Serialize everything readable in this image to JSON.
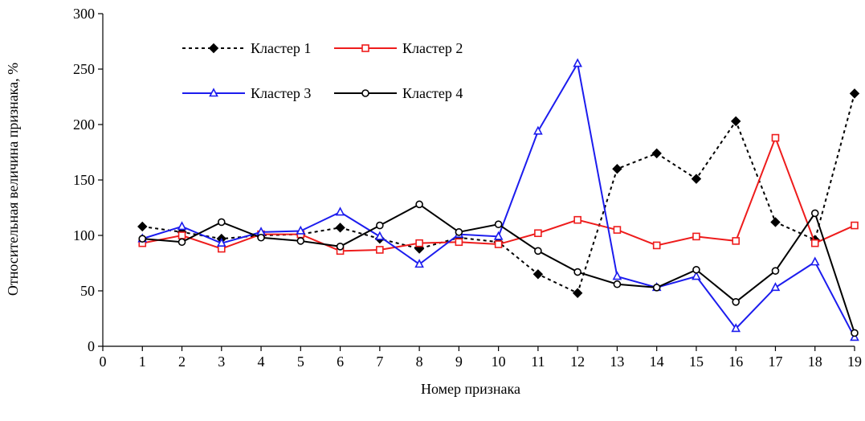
{
  "chart_data": {
    "type": "line",
    "title": "",
    "xlabel": "Номер признака",
    "ylabel": "Относительная величина признака, %",
    "xlim": [
      0,
      19
    ],
    "ylim": [
      0,
      300
    ],
    "x_ticks": [
      0,
      1,
      2,
      3,
      4,
      5,
      6,
      7,
      8,
      9,
      10,
      11,
      12,
      13,
      14,
      15,
      16,
      17,
      18,
      19
    ],
    "y_ticks": [
      0,
      50,
      100,
      150,
      200,
      250,
      300
    ],
    "grid": false,
    "legend_position": "top-left",
    "x": [
      1,
      2,
      3,
      4,
      5,
      6,
      7,
      8,
      9,
      10,
      11,
      12,
      13,
      14,
      15,
      16,
      17,
      18,
      19
    ],
    "series": [
      {
        "name": "Кластер 1",
        "color": "#000000",
        "dash": true,
        "marker": "diamond-filled",
        "values": [
          108,
          103,
          97,
          100,
          101,
          107,
          97,
          88,
          98,
          94,
          65,
          48,
          160,
          174,
          151,
          203,
          112,
          96,
          228
        ]
      },
      {
        "name": "Кластер 2",
        "color": "#ee1c1c",
        "dash": false,
        "marker": "square-open",
        "values": [
          93,
          100,
          88,
          101,
          101,
          86,
          87,
          93,
          94,
          92,
          102,
          114,
          105,
          91,
          99,
          95,
          188,
          93,
          109
        ]
      },
      {
        "name": "Кластер 3",
        "color": "#1c1cee",
        "dash": false,
        "marker": "triangle-open",
        "values": [
          97,
          108,
          93,
          103,
          104,
          121,
          99,
          74,
          101,
          99,
          194,
          255,
          63,
          53,
          63,
          16,
          53,
          76,
          8
        ]
      },
      {
        "name": "Кластер 4",
        "color": "#000000",
        "dash": false,
        "marker": "circle-open",
        "values": [
          97,
          94,
          112,
          98,
          95,
          90,
          109,
          128,
          103,
          110,
          86,
          67,
          56,
          53,
          69,
          40,
          68,
          120,
          12
        ]
      }
    ]
  }
}
